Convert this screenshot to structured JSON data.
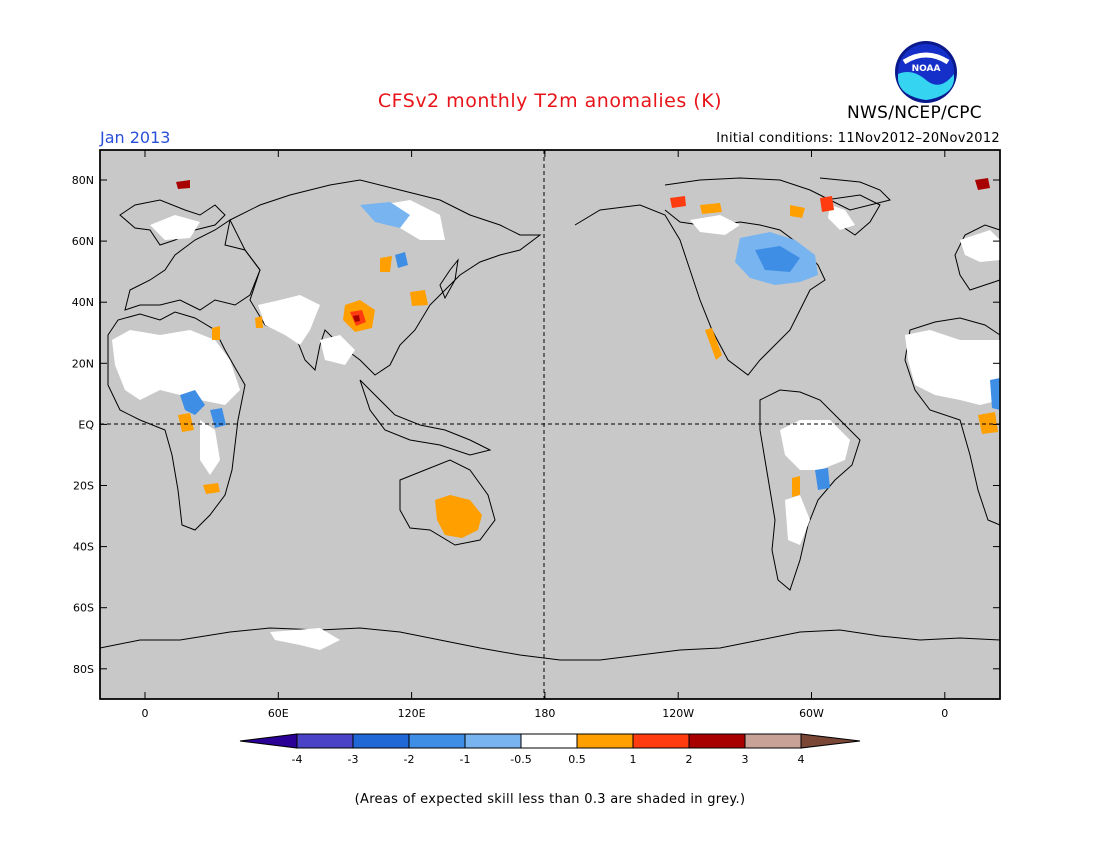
{
  "title": "CFSv2 monthly T2m anomalies (K)",
  "month": "Jan 2013",
  "agency": "NWS/NCEP/CPC",
  "logo_text": "NOAA",
  "initial_conditions": "Initial conditions: 11Nov2012–20Nov2012",
  "lat_labels": [
    "80N",
    "60N",
    "40N",
    "20N",
    "EQ",
    "20S",
    "40S",
    "60S",
    "80S"
  ],
  "lon_labels": [
    "0",
    "60E",
    "120E",
    "180",
    "120W",
    "60W",
    "0"
  ],
  "colorbar": {
    "ticks": [
      "-4",
      "-3",
      "-2",
      "-1",
      "-0.5",
      "0.5",
      "1",
      "2",
      "3",
      "4"
    ],
    "colors": [
      "#2a0096",
      "#4a43c8",
      "#1f68d6",
      "#3f8ee6",
      "#78b4f0",
      "#ffffff",
      "#ff9f00",
      "#ff3c10",
      "#a80000",
      "#c8a296",
      "#7a4636"
    ]
  },
  "footnote": "(Areas of expected skill less than 0.3 are shaded in grey.)"
}
